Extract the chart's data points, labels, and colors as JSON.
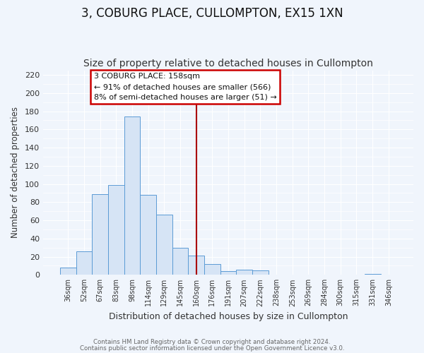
{
  "title": "3, COBURG PLACE, CULLOMPTON, EX15 1XN",
  "subtitle": "Size of property relative to detached houses in Cullompton",
  "xlabel": "Distribution of detached houses by size in Cullompton",
  "ylabel": "Number of detached properties",
  "bar_labels": [
    "36sqm",
    "52sqm",
    "67sqm",
    "83sqm",
    "98sqm",
    "114sqm",
    "129sqm",
    "145sqm",
    "160sqm",
    "176sqm",
    "191sqm",
    "207sqm",
    "222sqm",
    "238sqm",
    "253sqm",
    "269sqm",
    "284sqm",
    "300sqm",
    "315sqm",
    "331sqm",
    "346sqm"
  ],
  "bar_values": [
    8,
    26,
    89,
    99,
    174,
    88,
    66,
    30,
    21,
    12,
    4,
    6,
    5,
    0,
    0,
    0,
    0,
    0,
    0,
    1,
    0
  ],
  "bar_color": "#d6e4f5",
  "bar_edge_color": "#5b9bd5",
  "vline_x_idx": 8,
  "vline_color": "#aa0000",
  "ylim": [
    0,
    225
  ],
  "yticks": [
    0,
    20,
    40,
    60,
    80,
    100,
    120,
    140,
    160,
    180,
    200,
    220
  ],
  "annotation_title": "3 COBURG PLACE: 158sqm",
  "annotation_line1": "← 91% of detached houses are smaller (566)",
  "annotation_line2": "8% of semi-detached houses are larger (51) →",
  "annotation_box_color": "#cc0000",
  "footer1": "Contains HM Land Registry data © Crown copyright and database right 2024.",
  "footer2": "Contains public sector information licensed under the Open Government Licence v3.0.",
  "bg_color": "#f0f5fc",
  "grid_color": "#ffffff",
  "title_fontsize": 12,
  "subtitle_fontsize": 10
}
